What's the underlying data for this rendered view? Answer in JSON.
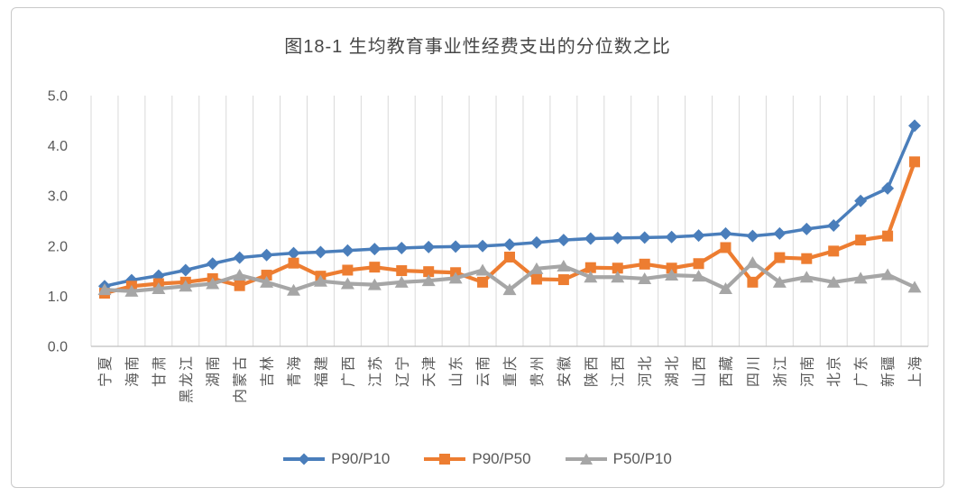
{
  "theme": {
    "background": "#ffffff",
    "frame_border": "#c9c9c9",
    "grid_color": "#d9d9d9",
    "axis_color": "#bfbfbf",
    "tick_text_color": "#595959",
    "title_color": "#474747"
  },
  "chart_data": {
    "type": "line",
    "title": "图18-1 生均教育事业性经费支出的分位数之比",
    "categories": [
      "宁夏",
      "海南",
      "甘肃",
      "黑龙江",
      "湖南",
      "内蒙古",
      "吉林",
      "青海",
      "福建",
      "广西",
      "江苏",
      "辽宁",
      "天津",
      "山东",
      "云南",
      "重庆",
      "贵州",
      "安徽",
      "陕西",
      "江西",
      "河北",
      "湖北",
      "山西",
      "西藏",
      "四川",
      "浙江",
      "河南",
      "北京",
      "广东",
      "新疆",
      "上海"
    ],
    "series": [
      {
        "name": "P90/P10",
        "color": "#4a7ebb",
        "marker": "diamond",
        "values": [
          1.2,
          1.32,
          1.41,
          1.52,
          1.65,
          1.77,
          1.82,
          1.86,
          1.88,
          1.91,
          1.94,
          1.96,
          1.98,
          1.99,
          2.0,
          2.03,
          2.07,
          2.12,
          2.15,
          2.16,
          2.17,
          2.18,
          2.21,
          2.25,
          2.2,
          2.25,
          2.34,
          2.41,
          2.9,
          3.15,
          4.4
        ]
      },
      {
        "name": "P90/P50",
        "color": "#ed7d31",
        "marker": "square",
        "values": [
          1.06,
          1.2,
          1.25,
          1.28,
          1.35,
          1.21,
          1.42,
          1.66,
          1.4,
          1.52,
          1.58,
          1.51,
          1.49,
          1.47,
          1.28,
          1.78,
          1.34,
          1.33,
          1.57,
          1.56,
          1.64,
          1.56,
          1.65,
          1.97,
          1.28,
          1.77,
          1.75,
          1.9,
          2.12,
          2.2,
          3.68
        ]
      },
      {
        "name": "P50/P10",
        "color": "#a6a6a6",
        "marker": "triangle",
        "values": [
          1.13,
          1.1,
          1.15,
          1.2,
          1.25,
          1.42,
          1.28,
          1.12,
          1.3,
          1.25,
          1.23,
          1.28,
          1.31,
          1.36,
          1.52,
          1.13,
          1.55,
          1.6,
          1.38,
          1.38,
          1.35,
          1.42,
          1.4,
          1.15,
          1.67,
          1.28,
          1.38,
          1.28,
          1.36,
          1.43,
          1.18
        ]
      }
    ],
    "ylim": [
      0,
      5
    ],
    "ytick_step": 1,
    "ytick_labels": [
      "0.0",
      "1.0",
      "2.0",
      "3.0",
      "4.0",
      "5.0"
    ],
    "grid": "vertical-only",
    "legend_position": "bottom",
    "x_label_rotation": -90
  }
}
